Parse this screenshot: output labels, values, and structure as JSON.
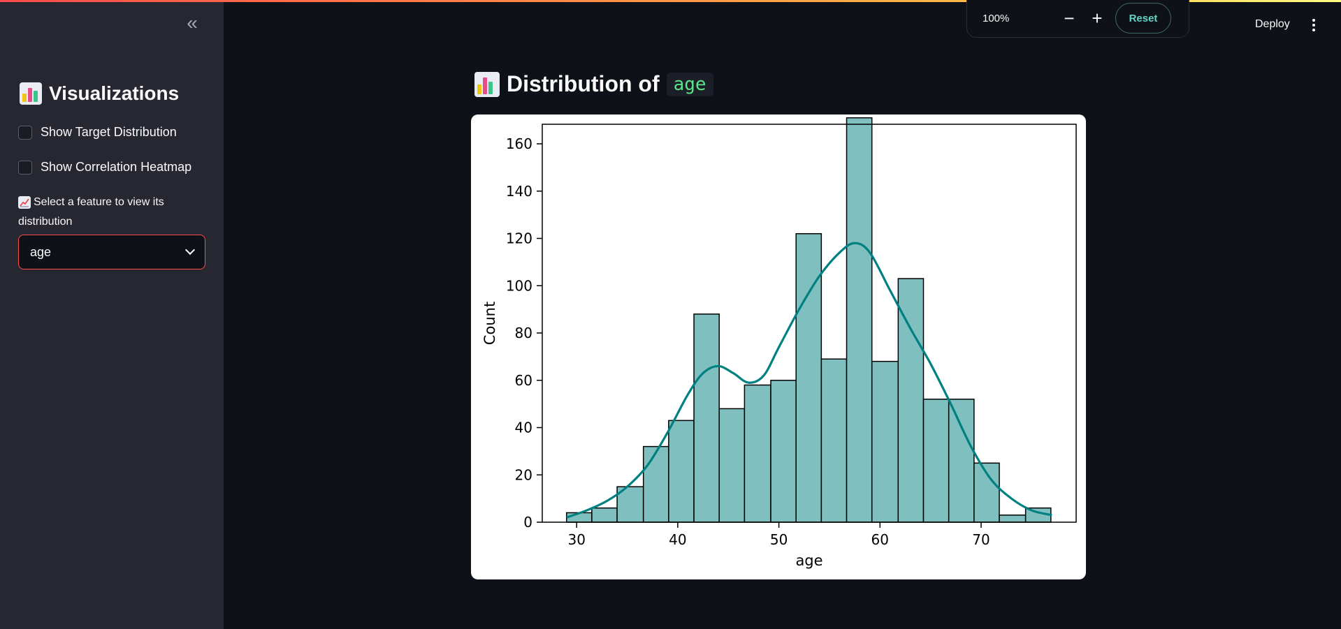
{
  "sidebar": {
    "collapse_icon": "double-chevron-left-icon",
    "title": "Visualizations",
    "checkboxes": [
      {
        "label": "Show Target Distribution",
        "checked": false
      },
      {
        "label": "Show Correlation Heatmap",
        "checked": false
      }
    ],
    "select_label": "Select a feature to view its distribution",
    "select_value": "age"
  },
  "header": {
    "zoom_level": "100%",
    "zoom_out": "−",
    "zoom_in": "+",
    "reset_label": "Reset",
    "deploy_label": "Deploy"
  },
  "main": {
    "heading_prefix": "Distribution of",
    "heading_code": "age"
  },
  "colors": {
    "accent": "#ff4b4b",
    "bar_fill": "#80bfbf",
    "kde_line": "#008080",
    "code_text": "#5ce488"
  },
  "chart_data": {
    "type": "bar",
    "title": "",
    "xlabel": "age",
    "ylabel": "Count",
    "xlim": [
      26.6,
      79.4
    ],
    "ylim": [
      0,
      170
    ],
    "xticks": [
      30,
      40,
      50,
      60,
      70
    ],
    "yticks": [
      0,
      20,
      40,
      60,
      80,
      100,
      120,
      140,
      160
    ],
    "bin_edges": [
      29.0,
      31.5,
      34.0,
      36.6,
      39.1,
      41.6,
      44.1,
      46.6,
      49.2,
      51.7,
      54.2,
      56.7,
      59.2,
      61.8,
      64.3,
      66.8,
      69.3,
      71.8,
      74.4,
      76.9
    ],
    "values": [
      4,
      6,
      15,
      32,
      43,
      88,
      48,
      58,
      60,
      122,
      69,
      171,
      68,
      103,
      52,
      52,
      25,
      3,
      6
    ],
    "kde": {
      "x": [
        29,
        31,
        33,
        35,
        37,
        39,
        41,
        42.5,
        44,
        45.5,
        47,
        48.5,
        50,
        52,
        54,
        56,
        57.5,
        59,
        61,
        63,
        65,
        67,
        69,
        71,
        73,
        75,
        77
      ],
      "y": [
        2,
        5,
        9,
        15,
        24,
        38,
        54,
        63,
        66,
        63,
        59,
        62,
        74,
        90,
        104,
        114,
        118,
        114,
        98,
        82,
        67,
        50,
        32,
        18,
        10,
        5,
        3
      ]
    },
    "grid": false,
    "legend": "none"
  }
}
